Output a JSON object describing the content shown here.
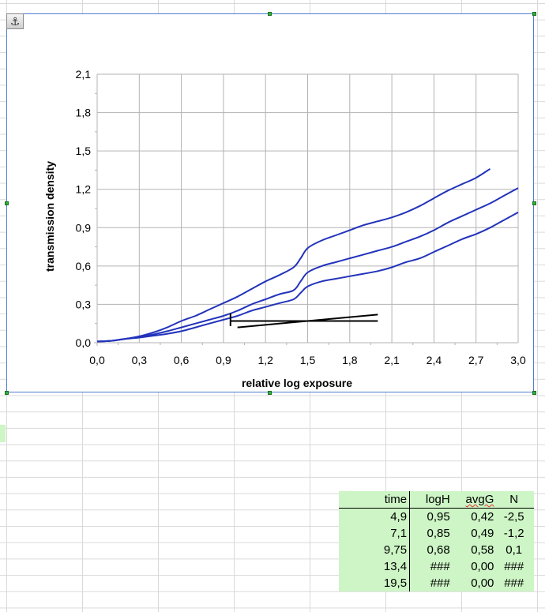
{
  "chart_data": {
    "type": "line",
    "title": "",
    "xlabel": "relative log exposure",
    "ylabel": "transmission density",
    "xlim": [
      0,
      3.0
    ],
    "ylim": [
      0,
      2.1
    ],
    "x_ticks": [
      "0,0",
      "0,3",
      "0,6",
      "0,9",
      "1,2",
      "1,5",
      "1,8",
      "2,1",
      "2,4",
      "2,7",
      "3,0"
    ],
    "y_ticks": [
      "0,0",
      "0,3",
      "0,6",
      "0,9",
      "1,2",
      "1,5",
      "1,8",
      "2,1"
    ],
    "grid": true,
    "legend": "none",
    "series_color": "#2233bb",
    "line_color": "#000000",
    "series": [
      {
        "x": [
          0.0,
          0.1,
          0.2,
          0.3,
          0.4,
          0.5,
          0.6,
          0.7,
          0.8,
          0.9,
          1.0,
          1.1,
          1.2,
          1.3,
          1.4,
          1.45,
          1.5,
          1.6,
          1.7,
          1.8,
          1.9,
          2.0,
          2.1,
          2.2,
          2.3,
          2.4,
          2.5,
          2.6,
          2.7,
          2.8
        ],
        "y": [
          0.01,
          0.015,
          0.03,
          0.05,
          0.08,
          0.12,
          0.17,
          0.21,
          0.26,
          0.31,
          0.36,
          0.42,
          0.48,
          0.53,
          0.59,
          0.66,
          0.74,
          0.8,
          0.84,
          0.88,
          0.92,
          0.95,
          0.98,
          1.02,
          1.07,
          1.13,
          1.19,
          1.24,
          1.29,
          1.36
        ]
      },
      {
        "x": [
          0.0,
          0.1,
          0.2,
          0.3,
          0.4,
          0.5,
          0.6,
          0.7,
          0.8,
          0.9,
          1.0,
          1.1,
          1.2,
          1.3,
          1.4,
          1.45,
          1.5,
          1.6,
          1.7,
          1.8,
          1.9,
          2.0,
          2.1,
          2.2,
          2.3,
          2.4,
          2.5,
          2.6,
          2.7,
          2.8,
          2.9,
          3.0
        ],
        "y": [
          0.01,
          0.015,
          0.03,
          0.045,
          0.065,
          0.09,
          0.12,
          0.15,
          0.18,
          0.21,
          0.25,
          0.3,
          0.34,
          0.38,
          0.41,
          0.48,
          0.55,
          0.6,
          0.63,
          0.66,
          0.69,
          0.72,
          0.75,
          0.79,
          0.83,
          0.88,
          0.94,
          0.99,
          1.04,
          1.09,
          1.15,
          1.21
        ]
      },
      {
        "x": [
          0.0,
          0.1,
          0.2,
          0.3,
          0.4,
          0.5,
          0.6,
          0.7,
          0.8,
          0.9,
          1.0,
          1.1,
          1.2,
          1.3,
          1.4,
          1.45,
          1.5,
          1.6,
          1.7,
          1.8,
          1.9,
          2.0,
          2.1,
          2.2,
          2.3,
          2.4,
          2.5,
          2.6,
          2.7,
          2.8,
          2.9,
          3.0
        ],
        "y": [
          0.01,
          0.015,
          0.03,
          0.04,
          0.055,
          0.07,
          0.09,
          0.12,
          0.15,
          0.18,
          0.21,
          0.25,
          0.28,
          0.31,
          0.34,
          0.39,
          0.44,
          0.48,
          0.5,
          0.52,
          0.54,
          0.56,
          0.59,
          0.63,
          0.66,
          0.71,
          0.76,
          0.81,
          0.85,
          0.9,
          0.96,
          1.02
        ]
      }
    ],
    "lines": [
      {
        "x": [
          1.0,
          2.0
        ],
        "y": [
          0.12,
          0.22
        ]
      },
      {
        "x": [
          0.95,
          2.0
        ],
        "y": [
          0.17,
          0.17
        ]
      },
      {
        "x": [
          0.95,
          0.95
        ],
        "y": [
          0.13,
          0.23
        ]
      }
    ]
  },
  "table": {
    "headers": [
      "time",
      "logH",
      "avgG",
      "N"
    ],
    "rows": [
      [
        "4,9",
        "0,95",
        "0,42",
        "-2,5"
      ],
      [
        "7,1",
        "0,85",
        "0,49",
        "-1,2"
      ],
      [
        "9,75",
        "0,68",
        "0,58",
        "0,1"
      ],
      [
        "13,4",
        "###",
        "0,00",
        "###"
      ],
      [
        "19,5",
        "###",
        "0,00",
        "###"
      ]
    ]
  },
  "icons": {
    "anchor": "anchor-icon"
  }
}
